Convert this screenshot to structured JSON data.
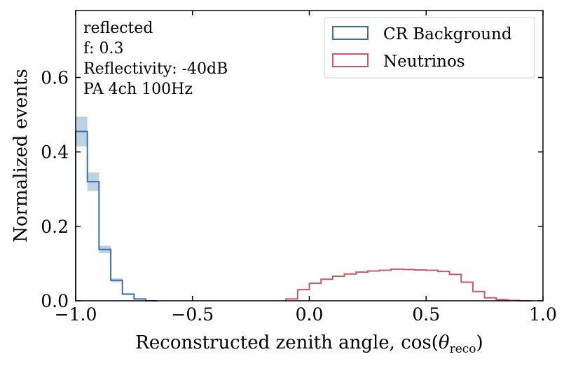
{
  "chart_data": {
    "type": "histogram",
    "xlabel_main": "Reconstructed zenith angle, cos(",
    "xlabel_theta": "θ",
    "xlabel_sub": "reco",
    "xlabel_close": ")",
    "ylabel": "Normalized events",
    "xlim": [
      -1.0,
      1.0
    ],
    "ylim": [
      0.0,
      0.78
    ],
    "x_ticks": [
      -1.0,
      -0.5,
      0.0,
      0.5,
      1.0
    ],
    "x_tick_labels": [
      "−1.0",
      "−0.5",
      "0.0",
      "0.5",
      "1.0"
    ],
    "y_ticks": [
      0.0,
      0.2,
      0.4,
      0.6
    ],
    "y_tick_labels": [
      "0.0",
      "0.2",
      "0.4",
      "0.6"
    ],
    "bin_width": 0.05,
    "annotations": [
      "reflected",
      "f: 0.3",
      "Reflectivity: -40dB",
      "PA 4ch 100Hz"
    ],
    "legend_position": "top-right",
    "series": [
      {
        "name": "CR Background",
        "color": "#3a6fa8",
        "band_color": "#a9c1dc",
        "bins": [
          {
            "x": -1.0,
            "value": 0.455,
            "err": 0.04
          },
          {
            "x": -0.95,
            "value": 0.32,
            "err": 0.025
          },
          {
            "x": -0.9,
            "value": 0.138,
            "err": 0.01
          },
          {
            "x": -0.85,
            "value": 0.055,
            "err": 0.005
          },
          {
            "x": -0.8,
            "value": 0.018,
            "err": 0.002
          },
          {
            "x": -0.75,
            "value": 0.005,
            "err": 0.001
          },
          {
            "x": -0.7,
            "value": 0.0,
            "err": 0.0
          }
        ]
      },
      {
        "name": "Neutrinos",
        "color": "#c85a6a",
        "bins": [
          {
            "x": -0.1,
            "value": 0.005
          },
          {
            "x": -0.05,
            "value": 0.03
          },
          {
            "x": 0.0,
            "value": 0.047
          },
          {
            "x": 0.05,
            "value": 0.058
          },
          {
            "x": 0.1,
            "value": 0.066
          },
          {
            "x": 0.15,
            "value": 0.072
          },
          {
            "x": 0.2,
            "value": 0.077
          },
          {
            "x": 0.25,
            "value": 0.08
          },
          {
            "x": 0.3,
            "value": 0.082
          },
          {
            "x": 0.35,
            "value": 0.085
          },
          {
            "x": 0.4,
            "value": 0.084
          },
          {
            "x": 0.45,
            "value": 0.083
          },
          {
            "x": 0.5,
            "value": 0.082
          },
          {
            "x": 0.55,
            "value": 0.079
          },
          {
            "x": 0.6,
            "value": 0.071
          },
          {
            "x": 0.65,
            "value": 0.05
          },
          {
            "x": 0.7,
            "value": 0.025
          },
          {
            "x": 0.75,
            "value": 0.008
          },
          {
            "x": 0.8,
            "value": 0.003
          },
          {
            "x": 0.85,
            "value": 0.001
          },
          {
            "x": 0.9,
            "value": 0.0
          }
        ]
      }
    ]
  }
}
